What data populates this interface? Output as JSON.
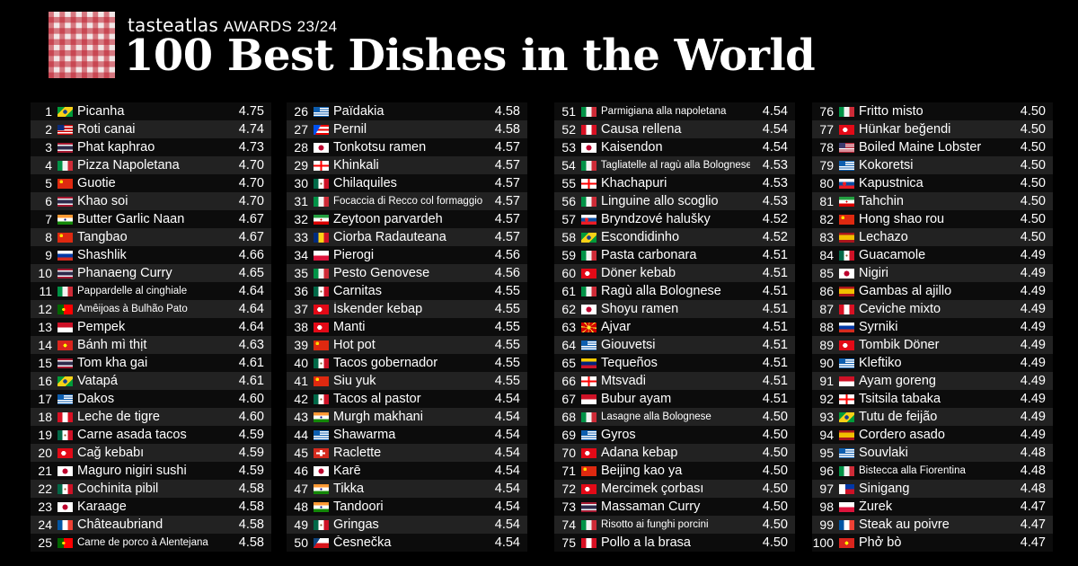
{
  "header": {
    "brand": "tasteatlas",
    "awards": "AWARDS 23/24",
    "title": "100 Best Dishes in the World"
  },
  "columns": [
    [
      {
        "rank": "1",
        "name": "Picanha",
        "score": "4.75",
        "flag": "br"
      },
      {
        "rank": "2",
        "name": "Roti canai",
        "score": "4.74",
        "flag": "my"
      },
      {
        "rank": "3",
        "name": "Phat kaphrao",
        "score": "4.73",
        "flag": "th"
      },
      {
        "rank": "4",
        "name": "Pizza Napoletana",
        "score": "4.70",
        "flag": "it"
      },
      {
        "rank": "5",
        "name": "Guotie",
        "score": "4.70",
        "flag": "cn"
      },
      {
        "rank": "6",
        "name": "Khao soi",
        "score": "4.70",
        "flag": "th"
      },
      {
        "rank": "7",
        "name": "Butter Garlic Naan",
        "score": "4.67",
        "flag": "in"
      },
      {
        "rank": "8",
        "name": "Tangbao",
        "score": "4.67",
        "flag": "cn"
      },
      {
        "rank": "9",
        "name": "Shashlik",
        "score": "4.66",
        "flag": "ru"
      },
      {
        "rank": "10",
        "name": "Phanaeng Curry",
        "score": "4.65",
        "flag": "th"
      },
      {
        "rank": "11",
        "name": "Pappardelle al cinghiale",
        "score": "4.64",
        "flag": "it",
        "small": true
      },
      {
        "rank": "12",
        "name": "Amêijoas à Bulhão Pato",
        "score": "4.64",
        "flag": "pt",
        "small": true
      },
      {
        "rank": "13",
        "name": "Pempek",
        "score": "4.64",
        "flag": "id"
      },
      {
        "rank": "14",
        "name": "Bánh mì thịt",
        "score": "4.63",
        "flag": "vn"
      },
      {
        "rank": "15",
        "name": "Tom kha gai",
        "score": "4.61",
        "flag": "th"
      },
      {
        "rank": "16",
        "name": "Vatapá",
        "score": "4.61",
        "flag": "br"
      },
      {
        "rank": "17",
        "name": "Dakos",
        "score": "4.60",
        "flag": "gr"
      },
      {
        "rank": "18",
        "name": "Leche de tigre",
        "score": "4.60",
        "flag": "pe"
      },
      {
        "rank": "19",
        "name": "Carne asada tacos",
        "score": "4.59",
        "flag": "mx"
      },
      {
        "rank": "20",
        "name": "Cağ kebabı",
        "score": "4.59",
        "flag": "tr"
      },
      {
        "rank": "21",
        "name": "Maguro nigiri sushi",
        "score": "4.59",
        "flag": "jp"
      },
      {
        "rank": "22",
        "name": "Cochinita pibil",
        "score": "4.58",
        "flag": "mx"
      },
      {
        "rank": "23",
        "name": "Karaage",
        "score": "4.58",
        "flag": "jp"
      },
      {
        "rank": "24",
        "name": "Châteaubriand",
        "score": "4.58",
        "flag": "fr"
      },
      {
        "rank": "25",
        "name": "Carne de porco à Alentejana",
        "score": "4.58",
        "flag": "pt",
        "small": true
      }
    ],
    [
      {
        "rank": "26",
        "name": "Païdakia",
        "score": "4.58",
        "flag": "gr"
      },
      {
        "rank": "27",
        "name": "Pernil",
        "score": "4.58",
        "flag": "pr"
      },
      {
        "rank": "28",
        "name": "Tonkotsu ramen",
        "score": "4.57",
        "flag": "jp"
      },
      {
        "rank": "29",
        "name": "Khinkali",
        "score": "4.57",
        "flag": "ge"
      },
      {
        "rank": "30",
        "name": "Chilaquiles",
        "score": "4.57",
        "flag": "mx"
      },
      {
        "rank": "31",
        "name": "Focaccia di Recco col formaggio",
        "score": "4.57",
        "flag": "it",
        "small": true
      },
      {
        "rank": "32",
        "name": "Zeytoon parvardeh",
        "score": "4.57",
        "flag": "ir"
      },
      {
        "rank": "33",
        "name": "Ciorba Radauteana",
        "score": "4.57",
        "flag": "ro"
      },
      {
        "rank": "34",
        "name": "Pierogi",
        "score": "4.56",
        "flag": "pl"
      },
      {
        "rank": "35",
        "name": "Pesto Genovese",
        "score": "4.56",
        "flag": "it"
      },
      {
        "rank": "36",
        "name": "Carnitas",
        "score": "4.55",
        "flag": "mx"
      },
      {
        "rank": "37",
        "name": "İskender kebap",
        "score": "4.55",
        "flag": "tr"
      },
      {
        "rank": "38",
        "name": "Manti",
        "score": "4.55",
        "flag": "tr"
      },
      {
        "rank": "39",
        "name": "Hot pot",
        "score": "4.55",
        "flag": "cn"
      },
      {
        "rank": "40",
        "name": "Tacos gobernador",
        "score": "4.55",
        "flag": "mx"
      },
      {
        "rank": "41",
        "name": "Siu yuk",
        "score": "4.55",
        "flag": "cn"
      },
      {
        "rank": "42",
        "name": "Tacos al pastor",
        "score": "4.54",
        "flag": "mx"
      },
      {
        "rank": "43",
        "name": "Murgh makhani",
        "score": "4.54",
        "flag": "in"
      },
      {
        "rank": "44",
        "name": "Shawarma",
        "score": "4.54",
        "flag": "gr"
      },
      {
        "rank": "45",
        "name": "Raclette",
        "score": "4.54",
        "flag": "ch"
      },
      {
        "rank": "46",
        "name": "Karē",
        "score": "4.54",
        "flag": "jp"
      },
      {
        "rank": "47",
        "name": "Tikka",
        "score": "4.54",
        "flag": "in"
      },
      {
        "rank": "48",
        "name": "Tandoori",
        "score": "4.54",
        "flag": "in"
      },
      {
        "rank": "49",
        "name": "Gringas",
        "score": "4.54",
        "flag": "mx"
      },
      {
        "rank": "50",
        "name": "Česnečka",
        "score": "4.54",
        "flag": "cz"
      }
    ],
    [
      {
        "rank": "51",
        "name": "Parmigiana alla napoletana",
        "score": "4.54",
        "flag": "it",
        "small": true
      },
      {
        "rank": "52",
        "name": "Causa rellena",
        "score": "4.54",
        "flag": "pe"
      },
      {
        "rank": "53",
        "name": "Kaisendon",
        "score": "4.54",
        "flag": "jp"
      },
      {
        "rank": "54",
        "name": "Tagliatelle al ragù alla Bolognese",
        "score": "4.53",
        "flag": "it",
        "small": true
      },
      {
        "rank": "55",
        "name": "Khachapuri",
        "score": "4.53",
        "flag": "ge"
      },
      {
        "rank": "56",
        "name": "Linguine allo scoglio",
        "score": "4.53",
        "flag": "it"
      },
      {
        "rank": "57",
        "name": "Bryndzové halušky",
        "score": "4.52",
        "flag": "sk"
      },
      {
        "rank": "58",
        "name": "Escondidinho",
        "score": "4.52",
        "flag": "br"
      },
      {
        "rank": "59",
        "name": "Pasta carbonara",
        "score": "4.51",
        "flag": "it"
      },
      {
        "rank": "60",
        "name": "Döner kebab",
        "score": "4.51",
        "flag": "tr"
      },
      {
        "rank": "61",
        "name": "Ragù alla Bolognese",
        "score": "4.51",
        "flag": "it"
      },
      {
        "rank": "62",
        "name": "Shoyu ramen",
        "score": "4.51",
        "flag": "jp"
      },
      {
        "rank": "63",
        "name": "Ajvar",
        "score": "4.51",
        "flag": "mk"
      },
      {
        "rank": "64",
        "name": "Giouvetsi",
        "score": "4.51",
        "flag": "gr"
      },
      {
        "rank": "65",
        "name": "Tequeños",
        "score": "4.51",
        "flag": "ve"
      },
      {
        "rank": "66",
        "name": "Mtsvadi",
        "score": "4.51",
        "flag": "ge"
      },
      {
        "rank": "67",
        "name": "Bubur ayam",
        "score": "4.51",
        "flag": "id"
      },
      {
        "rank": "68",
        "name": "Lasagne alla Bolognese",
        "score": "4.50",
        "flag": "it",
        "small": true
      },
      {
        "rank": "69",
        "name": "Gyros",
        "score": "4.50",
        "flag": "gr"
      },
      {
        "rank": "70",
        "name": "Adana kebap",
        "score": "4.50",
        "flag": "tr"
      },
      {
        "rank": "71",
        "name": "Beijing kao ya",
        "score": "4.50",
        "flag": "cn"
      },
      {
        "rank": "72",
        "name": "Mercimek çorbası",
        "score": "4.50",
        "flag": "tr"
      },
      {
        "rank": "73",
        "name": "Massaman Curry",
        "score": "4.50",
        "flag": "th"
      },
      {
        "rank": "74",
        "name": "Risotto ai funghi porcini",
        "score": "4.50",
        "flag": "it",
        "small": true
      },
      {
        "rank": "75",
        "name": "Pollo a la brasa",
        "score": "4.50",
        "flag": "pe"
      }
    ],
    [
      {
        "rank": "76",
        "name": "Fritto misto",
        "score": "4.50",
        "flag": "it"
      },
      {
        "rank": "77",
        "name": "Hünkar beğendi",
        "score": "4.50",
        "flag": "tr"
      },
      {
        "rank": "78",
        "name": "Boiled Maine Lobster",
        "score": "4.50",
        "flag": "us"
      },
      {
        "rank": "79",
        "name": "Kokoretsi",
        "score": "4.50",
        "flag": "gr"
      },
      {
        "rank": "80",
        "name": "Kapustnica",
        "score": "4.50",
        "flag": "sk"
      },
      {
        "rank": "81",
        "name": "Tahchin",
        "score": "4.50",
        "flag": "ir"
      },
      {
        "rank": "82",
        "name": "Hong shao rou",
        "score": "4.50",
        "flag": "cn"
      },
      {
        "rank": "83",
        "name": "Lechazo",
        "score": "4.50",
        "flag": "es"
      },
      {
        "rank": "84",
        "name": "Guacamole",
        "score": "4.49",
        "flag": "mx"
      },
      {
        "rank": "85",
        "name": "Nigiri",
        "score": "4.49",
        "flag": "jp"
      },
      {
        "rank": "86",
        "name": "Gambas al ajillo",
        "score": "4.49",
        "flag": "es"
      },
      {
        "rank": "87",
        "name": "Ceviche mixto",
        "score": "4.49",
        "flag": "pe"
      },
      {
        "rank": "88",
        "name": "Syrniki",
        "score": "4.49",
        "flag": "ru"
      },
      {
        "rank": "89",
        "name": "Tombik Döner",
        "score": "4.49",
        "flag": "tr"
      },
      {
        "rank": "90",
        "name": "Kleftiko",
        "score": "4.49",
        "flag": "gr"
      },
      {
        "rank": "91",
        "name": "Ayam goreng",
        "score": "4.49",
        "flag": "id"
      },
      {
        "rank": "92",
        "name": "Tsitsila tabaka",
        "score": "4.49",
        "flag": "ge"
      },
      {
        "rank": "93",
        "name": "Tutu de feijão",
        "score": "4.49",
        "flag": "br"
      },
      {
        "rank": "94",
        "name": "Cordero asado",
        "score": "4.49",
        "flag": "es"
      },
      {
        "rank": "95",
        "name": "Souvlaki",
        "score": "4.48",
        "flag": "gr"
      },
      {
        "rank": "96",
        "name": "Bistecca alla Fiorentina",
        "score": "4.48",
        "flag": "it",
        "small": true
      },
      {
        "rank": "97",
        "name": "Sinigang",
        "score": "4.48",
        "flag": "ph"
      },
      {
        "rank": "98",
        "name": "Żurek",
        "score": "4.47",
        "flag": "pl"
      },
      {
        "rank": "99",
        "name": "Steak au poivre",
        "score": "4.47",
        "flag": "fr"
      },
      {
        "rank": "100",
        "name": "Phở bò",
        "score": "4.47",
        "flag": "vn"
      }
    ]
  ]
}
